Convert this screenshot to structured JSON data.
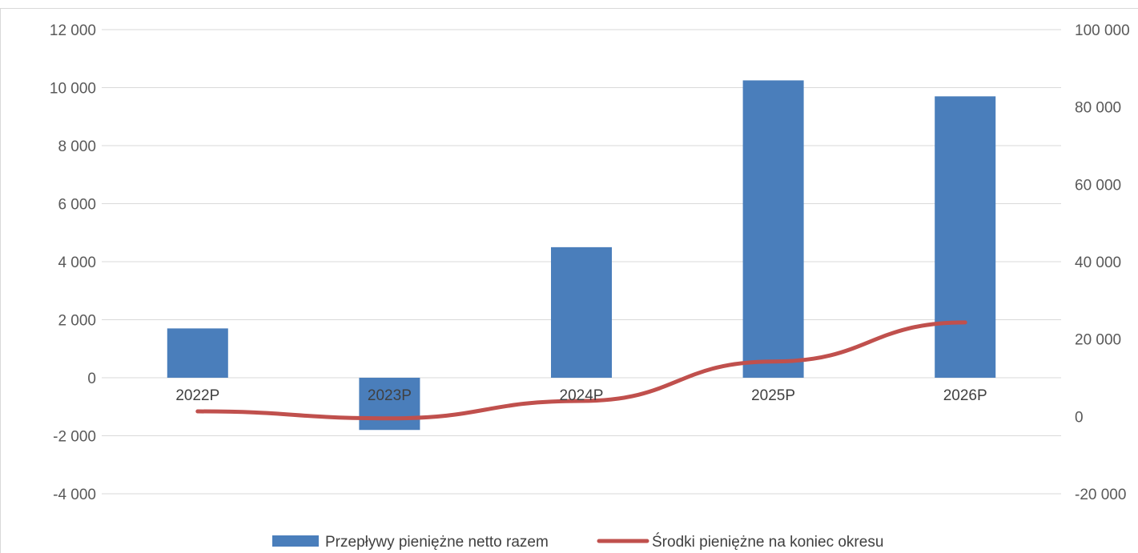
{
  "chart_data": {
    "type": "bar+line",
    "categories": [
      "2022P",
      "2023P",
      "2024P",
      "2025P",
      "2026P"
    ],
    "series": [
      {
        "name": "Przepływy pieniężne netto razem",
        "type": "bar",
        "axis": "left",
        "color": "#4a7ebb",
        "values": [
          1700,
          -1800,
          4500,
          10250,
          9700
        ]
      },
      {
        "name": "Środki pieniężne na koniec okresu",
        "type": "line",
        "axis": "right",
        "color": "#c0504d",
        "values": [
          1300,
          -500,
          4000,
          14200,
          24300
        ]
      }
    ],
    "y_left": {
      "min": -4000,
      "max": 12000,
      "ticks": [
        12000,
        10000,
        8000,
        6000,
        4000,
        2000,
        0,
        -2000,
        -4000
      ],
      "tick_labels": [
        "12 000",
        "10 000",
        "8 000",
        "6 000",
        "4 000",
        "2 000",
        "0",
        "-2 000",
        "-4 000"
      ]
    },
    "y_right": {
      "min": -20000,
      "max": 100000,
      "ticks": [
        100000,
        80000,
        60000,
        40000,
        20000,
        0,
        -20000
      ],
      "tick_labels": [
        "100 000",
        "80 000",
        "60 000",
        "40 000",
        "20 000",
        "0",
        "-20 000"
      ]
    },
    "grid": true,
    "legend_position": "bottom",
    "title": "",
    "xlabel": "",
    "ylabel": ""
  }
}
